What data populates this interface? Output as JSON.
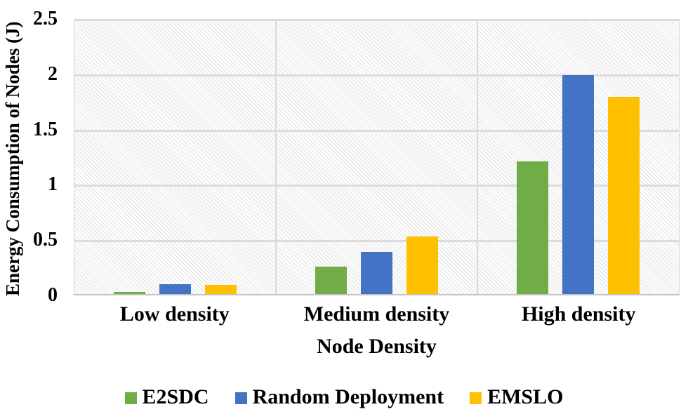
{
  "chart_data": {
    "type": "bar",
    "title": "",
    "xlabel": "Node Density",
    "ylabel": "Energy  Consumption of Nodes (J)",
    "categories": [
      "Low density",
      "Medium density",
      "High density"
    ],
    "series": [
      {
        "name": "E2SDC",
        "color": "#70AD47",
        "values": [
          0.02,
          0.25,
          1.2
        ]
      },
      {
        "name": "Random Deployment",
        "color": "#4472C4",
        "values": [
          0.09,
          0.38,
          1.98
        ]
      },
      {
        "name": "EMSLO",
        "color": "#FFC000",
        "values": [
          0.08,
          0.52,
          1.78
        ]
      }
    ],
    "ylim": [
      0,
      2.5
    ],
    "ytick_interval": 0.5,
    "yticks": [
      "0",
      "0.5",
      "1",
      "1.5",
      "2",
      "2.5"
    ],
    "grid": true,
    "grid_color": "#dcdcdc",
    "plot_fill": "diagonal-hatch",
    "legend_position": "bottom"
  }
}
